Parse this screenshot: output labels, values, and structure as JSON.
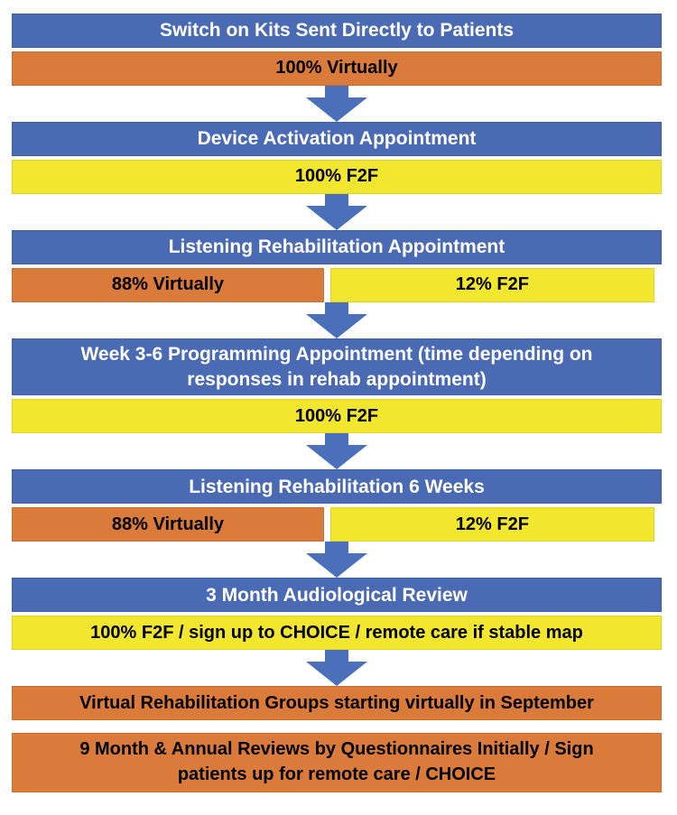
{
  "colors": {
    "header_blue": "#4a6bb3",
    "virtual_orange": "#db7b3b",
    "f2f_yellow": "#f2e72e",
    "arrow_blue": "#4a70ba",
    "header_text": "#ffffff",
    "label_text": "#000000"
  },
  "flow": {
    "steps": [
      {
        "title": "Switch on Kits Sent Directly to Patients",
        "bars": [
          {
            "label": "100% Virtually",
            "type": "virtual",
            "width_pct": 100
          }
        ],
        "arrow_after": true
      },
      {
        "title": "Device Activation Appointment",
        "bars": [
          {
            "label": "100% F2F",
            "type": "f2f",
            "width_pct": 100
          }
        ],
        "arrow_after": true
      },
      {
        "title": "Listening Rehabilitation Appointment",
        "bars": [
          {
            "label": "88% Virtually",
            "type": "virtual",
            "width_pct": 48.6
          },
          {
            "label": "12% F2F",
            "type": "f2f",
            "width_pct": 50.4
          }
        ],
        "arrow_after": true
      },
      {
        "title": "Week 3-6 Programming Appointment (time depending on\nresponses in rehab appointment)",
        "bars": [
          {
            "label": "100% F2F",
            "type": "f2f",
            "width_pct": 100
          }
        ],
        "arrow_after": true
      },
      {
        "title": "Listening Rehabilitation 6 Weeks",
        "bars": [
          {
            "label": "88% Virtually",
            "type": "virtual",
            "width_pct": 48.6
          },
          {
            "label": "12% F2F",
            "type": "f2f",
            "width_pct": 50.4
          }
        ],
        "arrow_after": true
      },
      {
        "title": "3 Month Audiological Review",
        "bars": [
          {
            "label": "100% F2F / sign up to CHOICE / remote care if stable map",
            "type": "f2f",
            "width_pct": 100
          }
        ],
        "arrow_after": true
      },
      {
        "title": null,
        "bars": [
          {
            "label": "Virtual Rehabilitation Groups starting virtually in September",
            "type": "virtual",
            "width_pct": 100
          }
        ],
        "arrow_after": false,
        "gap_after": true
      },
      {
        "title": null,
        "bars": [
          {
            "label": "9 Month & Annual Reviews by Questionnaires Initially / Sign\npatients up for remote care / CHOICE",
            "type": "virtual",
            "width_pct": 100
          }
        ],
        "arrow_after": false
      }
    ]
  }
}
